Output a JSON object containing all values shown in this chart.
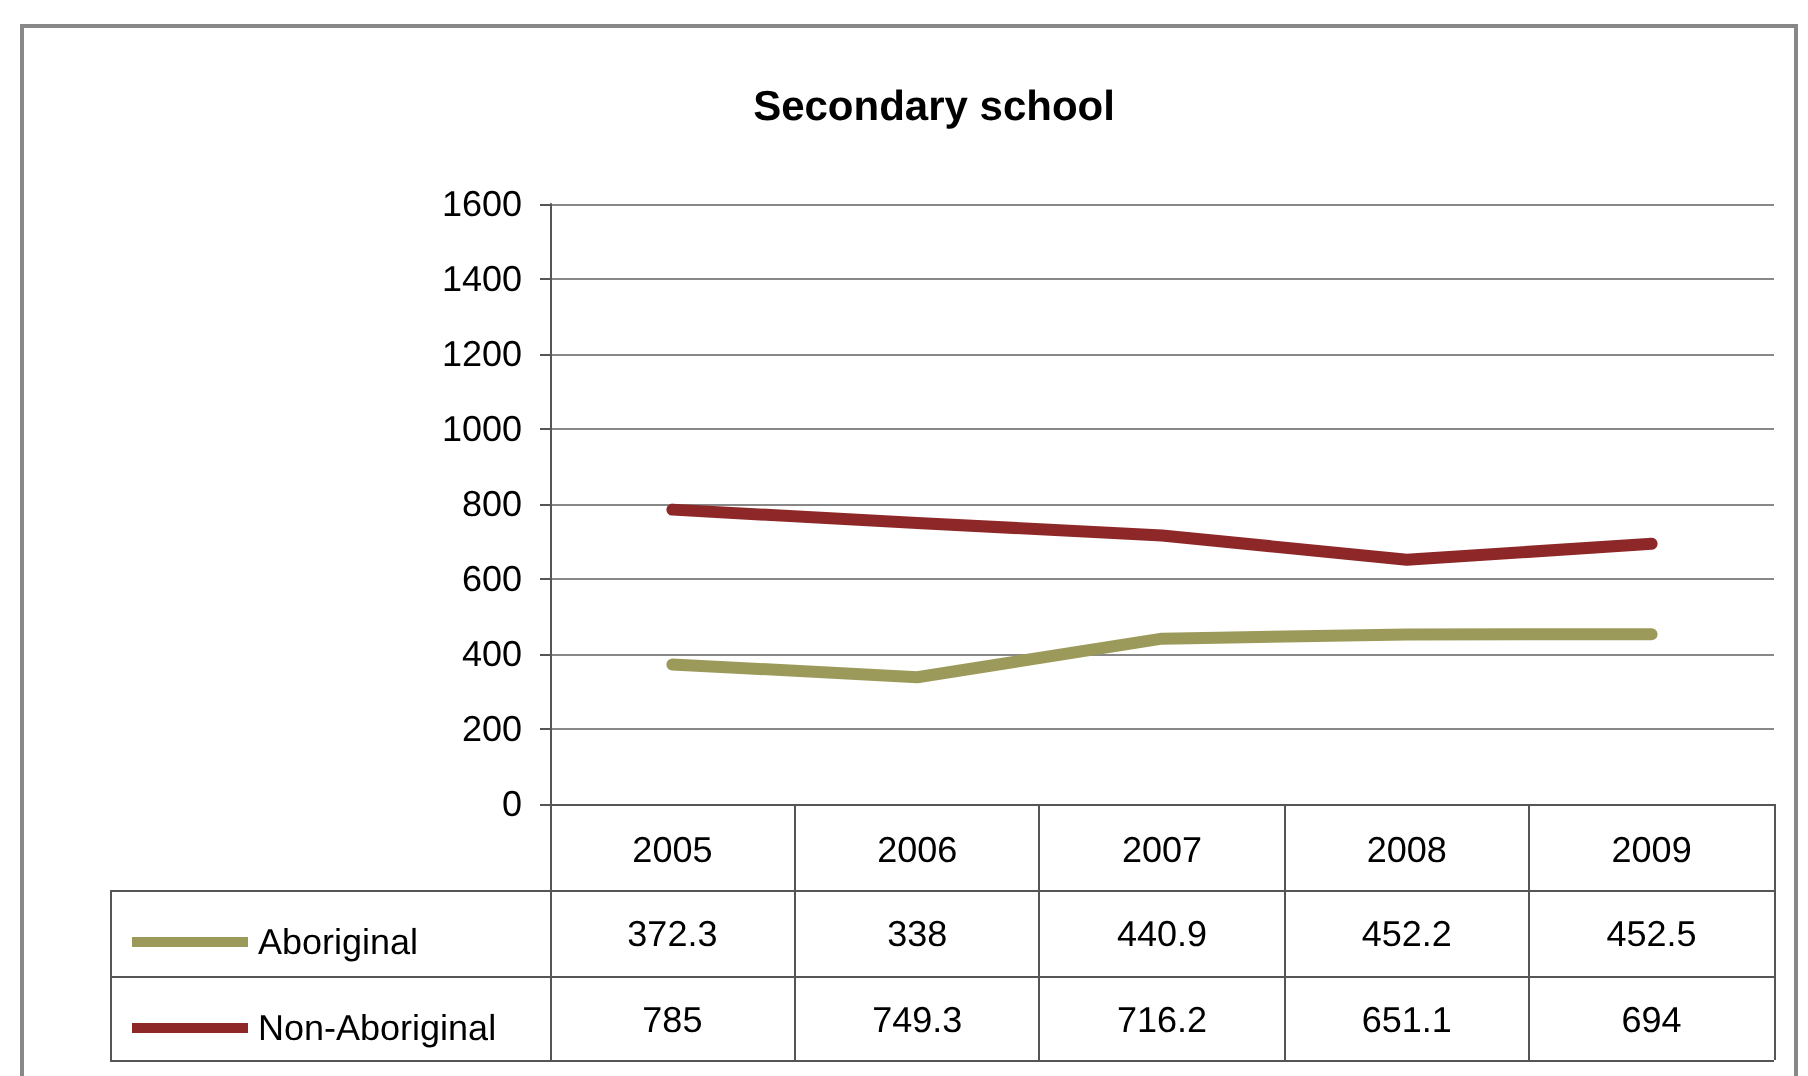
{
  "chart_data": {
    "type": "line",
    "title": "Secondary school",
    "categories": [
      "2005",
      "2006",
      "2007",
      "2008",
      "2009"
    ],
    "series": [
      {
        "name": "Aboriginal",
        "color": "#9c9a5b",
        "values": [
          372.3,
          338,
          440.9,
          452.2,
          452.5
        ]
      },
      {
        "name": "Non-Aboriginal",
        "color": "#8e2828",
        "values": [
          785,
          749.3,
          716.2,
          651.1,
          694
        ]
      }
    ],
    "ylim": [
      0,
      1600
    ],
    "yticks": [
      0,
      200,
      400,
      600,
      800,
      1000,
      1200,
      1400,
      1600
    ],
    "grid": "y",
    "legend": "bottom",
    "marker": "none",
    "line_style": "solid",
    "data_labels": true
  }
}
